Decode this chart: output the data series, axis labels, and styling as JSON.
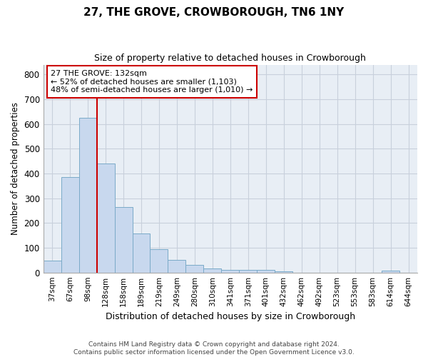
{
  "title": "27, THE GROVE, CROWBOROUGH, TN6 1NY",
  "subtitle": "Size of property relative to detached houses in Crowborough",
  "xlabel": "Distribution of detached houses by size in Crowborough",
  "ylabel": "Number of detached properties",
  "bar_color": "#c8d8ee",
  "bar_edge_color": "#7aaac8",
  "background_color": "#e8eef5",
  "grid_color": "#c8d0dc",
  "fig_background": "#ffffff",
  "annotation_box_color": "#cc0000",
  "vline_color": "#cc0000",
  "categories": [
    "37sqm",
    "67sqm",
    "98sqm",
    "128sqm",
    "158sqm",
    "189sqm",
    "219sqm",
    "249sqm",
    "280sqm",
    "310sqm",
    "341sqm",
    "371sqm",
    "401sqm",
    "432sqm",
    "462sqm",
    "492sqm",
    "523sqm",
    "553sqm",
    "583sqm",
    "614sqm",
    "644sqm"
  ],
  "values": [
    47,
    385,
    625,
    440,
    265,
    157,
    95,
    50,
    30,
    15,
    12,
    12,
    10,
    5,
    0,
    0,
    0,
    0,
    0,
    8,
    0
  ],
  "ylim": [
    0,
    840
  ],
  "yticks": [
    0,
    100,
    200,
    300,
    400,
    500,
    600,
    700,
    800
  ],
  "vline_position": 3,
  "annotation_text": "27 THE GROVE: 132sqm\n← 52% of detached houses are smaller (1,103)\n48% of semi-detached houses are larger (1,010) →",
  "footer_line1": "Contains HM Land Registry data © Crown copyright and database right 2024.",
  "footer_line2": "Contains public sector information licensed under the Open Government Licence v3.0."
}
